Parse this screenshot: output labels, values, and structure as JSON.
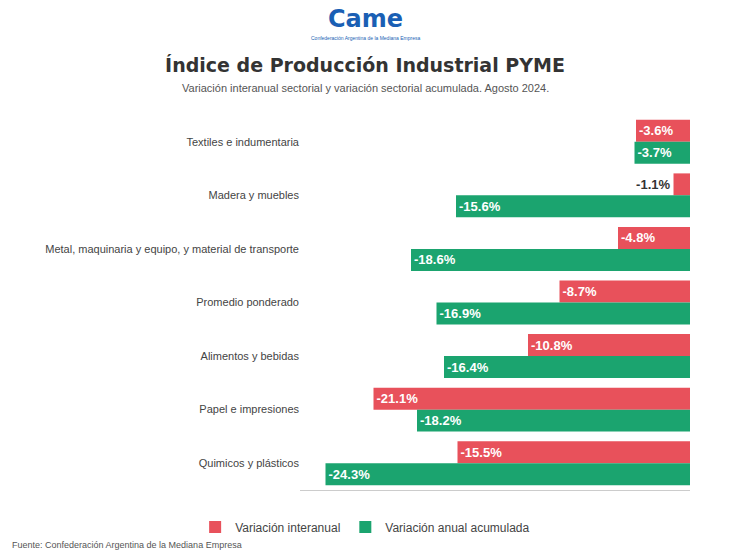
{
  "chart_data": {
    "type": "bar",
    "orientation": "horizontal",
    "logo": "Came",
    "logo_caption": "Confederación Argentina de la Mediana Empresa",
    "title": "Índice de Producción Industrial PYME",
    "subtitle": "Variación interanual sectorial y variación sectorial acumulada. Agosto 2024.",
    "source": "Fuente: Confederación Argentina de la Mediana Empresa",
    "categories": [
      "Textiles e indumentaria",
      "Madera y muebles",
      "Metal, maquinaria y equipo, y material de transporte",
      "Promedio ponderado",
      "Alimentos y bebidas",
      "Papel e impresiones",
      "Quimicos y plásticos"
    ],
    "series": [
      {
        "name": "Variación interanual",
        "color": "#e8515b",
        "values": [
          -3.6,
          -1.1,
          -4.8,
          -8.7,
          -10.8,
          -21.1,
          -15.5
        ],
        "value_labels": [
          "-3.6%",
          "-1.1%",
          "-4.8%",
          "-8.7%",
          "-10.8%",
          "-21.1%",
          "-15.5%"
        ]
      },
      {
        "name": "Variación anual acumulada",
        "color": "#1ba46f",
        "values": [
          -3.7,
          -15.6,
          -18.6,
          -16.9,
          -16.4,
          -18.2,
          -24.3
        ],
        "value_labels": [
          "-3.7%",
          "-15.6%",
          "-18.6%",
          "-16.9%",
          "-16.4%",
          "-18.2%",
          "-24.3%"
        ]
      }
    ],
    "xlim": [
      -26,
      0
    ],
    "xticks": [],
    "tick_labels": "y",
    "grid": false,
    "legend": "bottom",
    "data_labels": true
  }
}
